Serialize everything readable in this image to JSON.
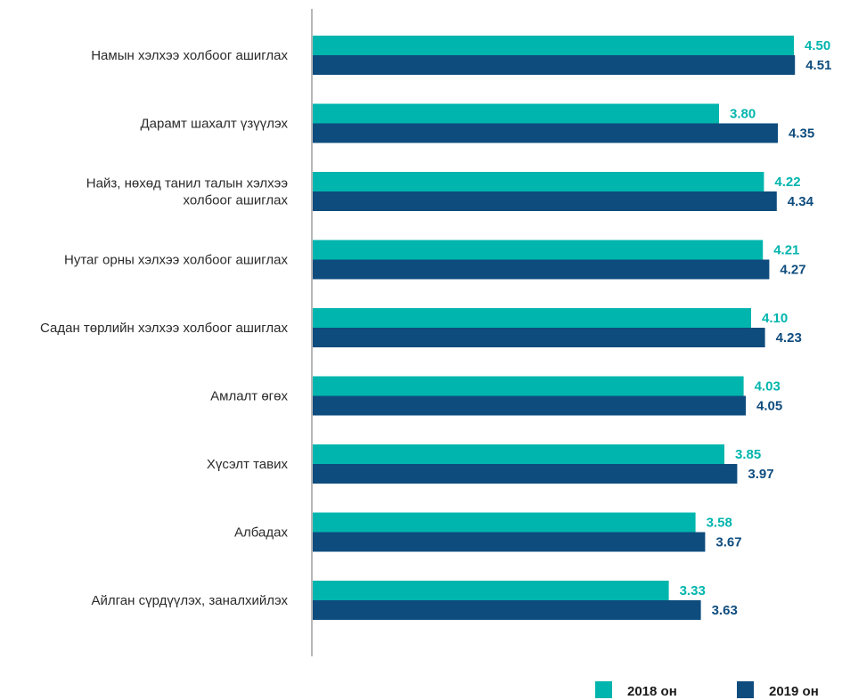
{
  "chart_data": {
    "type": "bar",
    "orientation": "horizontal",
    "categories": [
      [
        "Намын хэлхээ холбоог ашиглах"
      ],
      [
        "Дарамт шахалт үзүүлэх"
      ],
      [
        "Найз, нөхөд танил талын хэлхээ",
        "холбоог ашиглах"
      ],
      [
        "Нутаг орны хэлхээ холбоог ашиглах"
      ],
      [
        "Садан төрлийн хэлхээ холбоог ашиглах"
      ],
      [
        "Амлалт өгөх"
      ],
      [
        "Хүсэлт тавих"
      ],
      [
        "Албадах"
      ],
      [
        "Айлган сүрдүүлэх, заналхийлэх"
      ]
    ],
    "series": [
      {
        "name": "2018 он",
        "color": "#00b5ad",
        "values": [
          4.5,
          3.8,
          4.22,
          4.21,
          4.1,
          4.03,
          3.85,
          3.58,
          3.33
        ],
        "labels": [
          "4.50",
          "3.80",
          "4.22",
          "4.21",
          "4.10",
          "4.03",
          "3.85",
          "3.58",
          "3.33"
        ]
      },
      {
        "name": "2019 он",
        "color": "#0e4c7e",
        "values": [
          4.51,
          4.35,
          4.34,
          4.27,
          4.23,
          4.05,
          3.97,
          3.67,
          3.63
        ],
        "labels": [
          "4.51",
          "4.35",
          "4.34",
          "4.27",
          "4.23",
          "4.05",
          "3.97",
          "3.67",
          "3.63"
        ]
      }
    ],
    "legend_position": "bottom-right",
    "grid": false
  }
}
